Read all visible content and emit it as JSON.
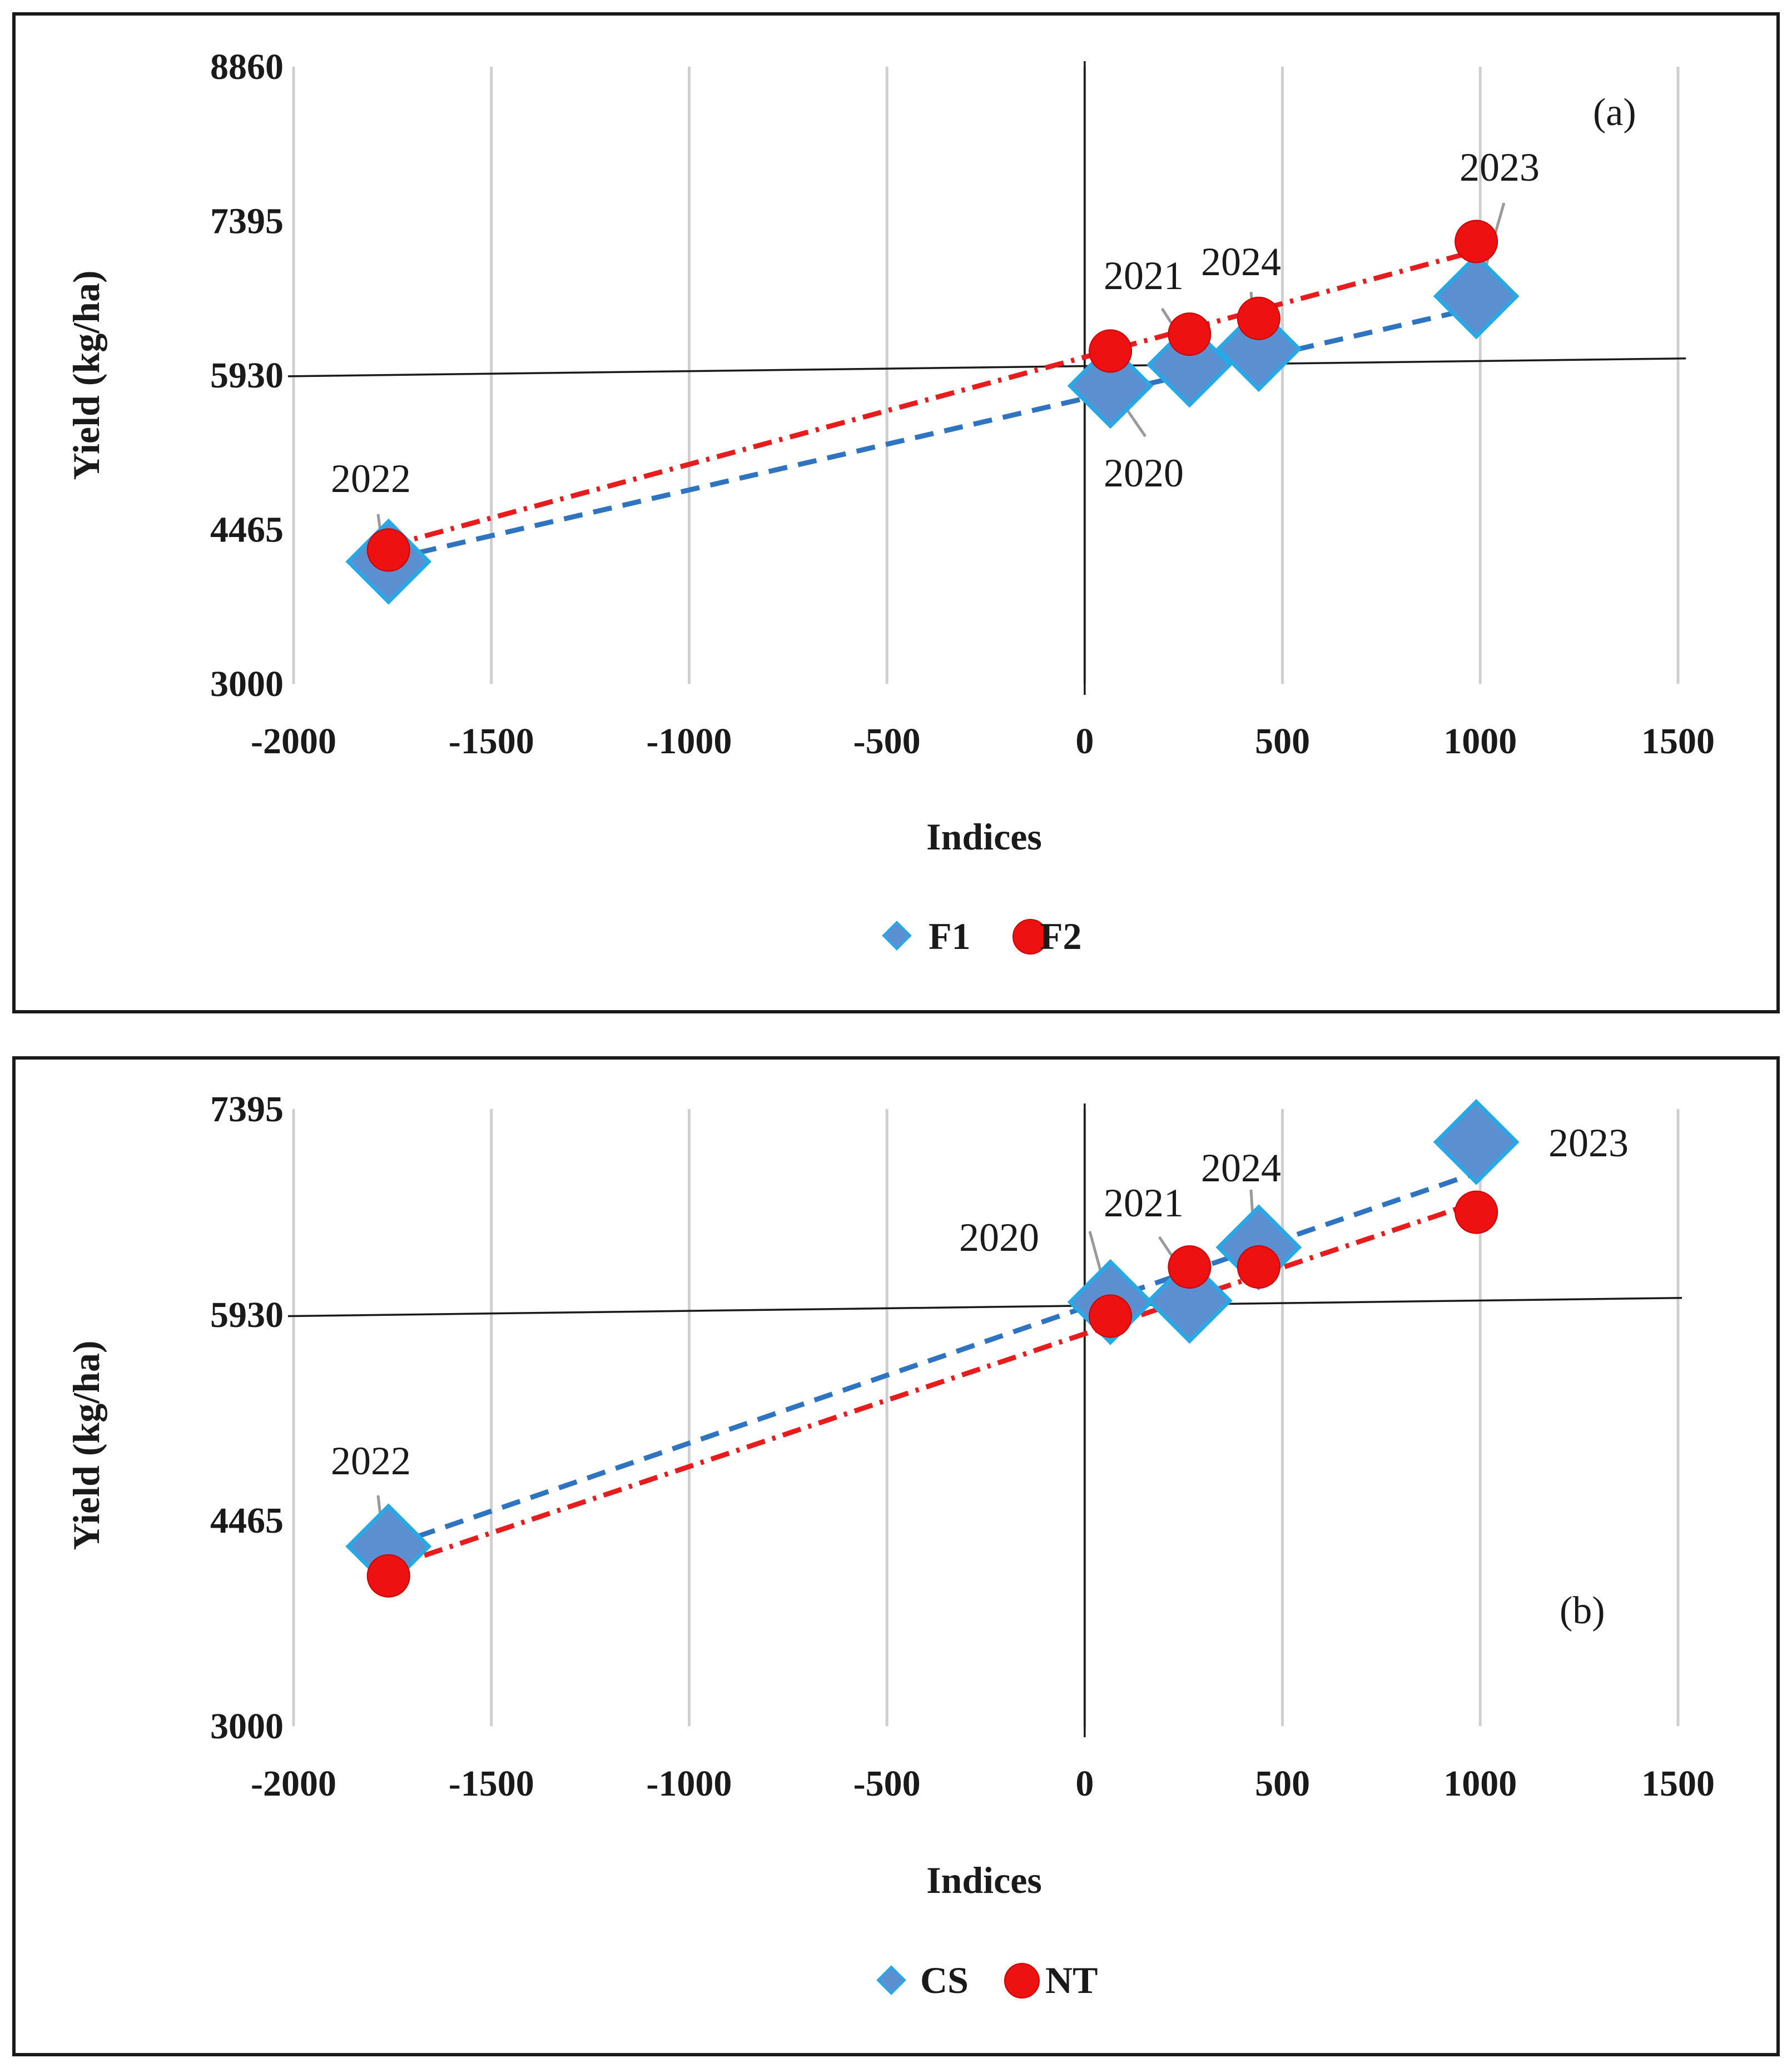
{
  "colors": {
    "series1": "#5b8fcf",
    "series1_border": "#29a8e6",
    "series2": "#ee1111",
    "trend1": "#2f74c0",
    "trend2": "#e81c1c"
  },
  "chart_data": [
    {
      "type": "scatter",
      "panel_label": "(a)",
      "xlabel": "Indices",
      "ylabel": "Yield (kg/ha)",
      "xlim": [
        -2000,
        1500
      ],
      "ylim": [
        3000,
        8860
      ],
      "xticks": [
        -2000,
        -1500,
        -1000,
        -500,
        0,
        500,
        1000,
        1500
      ],
      "yticks": [
        3000,
        4465,
        5930,
        7395,
        8860
      ],
      "xtick_labels": [
        "-2000",
        "-1500",
        "-1000",
        "-500",
        "0",
        "500",
        "1000",
        "1500"
      ],
      "ytick_labels": [
        "3000",
        "4465",
        "5930",
        "7395",
        "8860"
      ],
      "quadrant_line": {
        "start": [
          -2000,
          5920
        ],
        "end": [
          1520,
          6090
        ]
      },
      "legend_position": "bottom",
      "series": [
        {
          "name": "F1",
          "marker": "diamond",
          "x": [
            65,
            265,
            440,
            990,
            -1760
          ],
          "y": [
            5830,
            6030,
            6180,
            6680,
            4160
          ]
        },
        {
          "name": "F2",
          "marker": "circle",
          "x": [
            65,
            265,
            440,
            990,
            -1760
          ],
          "y": [
            6160,
            6320,
            6470,
            7200,
            4270
          ]
        }
      ],
      "trendlines": [
        {
          "series": "F1",
          "x": [
            -1760,
            990
          ],
          "y": [
            4180,
            6570
          ]
        },
        {
          "series": "F2",
          "x": [
            -1760,
            990
          ],
          "y": [
            4310,
            7110
          ]
        }
      ],
      "point_labels": [
        {
          "text": "2020",
          "x": 65,
          "y": 5830
        },
        {
          "text": "2021",
          "x": 265,
          "y": 6320
        },
        {
          "text": "2024",
          "x": 440,
          "y": 6470
        },
        {
          "text": "2023",
          "x": 990,
          "y": 7200
        },
        {
          "text": "2022",
          "x": -1760,
          "y": 4270
        }
      ]
    },
    {
      "type": "scatter",
      "panel_label": "(b)",
      "xlabel": "Indices",
      "ylabel": "Yield (kg/ha)",
      "xlim": [
        -2000,
        1500
      ],
      "ylim": [
        3000,
        7395
      ],
      "xticks": [
        -2000,
        -1500,
        -1000,
        -500,
        0,
        500,
        1000,
        1500
      ],
      "yticks": [
        3000,
        4465,
        5930,
        7395
      ],
      "xtick_labels": [
        "-2000",
        "-1500",
        "-1000",
        "-500",
        "0",
        "500",
        "1000",
        "1500"
      ],
      "ytick_labels": [
        "3000",
        "4465",
        "5930",
        "7395"
      ],
      "quadrant_line": {
        "start": [
          -2000,
          5920
        ],
        "end": [
          1510,
          6050
        ]
      },
      "legend_position": "bottom",
      "series": [
        {
          "name": "CS",
          "marker": "diamond",
          "x": [
            65,
            265,
            440,
            990,
            -1760
          ],
          "y": [
            6020,
            6030,
            6410,
            7160,
            4280
          ]
        },
        {
          "name": "NT",
          "marker": "circle",
          "x": [
            65,
            265,
            440,
            990,
            -1760
          ],
          "y": [
            5920,
            6270,
            6270,
            6660,
            4070
          ]
        }
      ],
      "trendlines": [
        {
          "series": "CS",
          "x": [
            -1760,
            990
          ],
          "y": [
            4280,
            6940
          ]
        },
        {
          "series": "NT",
          "x": [
            -1760,
            990
          ],
          "y": [
            4130,
            6730
          ]
        }
      ],
      "point_labels": [
        {
          "text": "2020",
          "x": 65,
          "y": 6020
        },
        {
          "text": "2021",
          "x": 265,
          "y": 6270
        },
        {
          "text": "2024",
          "x": 440,
          "y": 6410
        },
        {
          "text": "2023",
          "x": 990,
          "y": 7160
        },
        {
          "text": "2022",
          "x": -1760,
          "y": 4280
        }
      ]
    }
  ]
}
